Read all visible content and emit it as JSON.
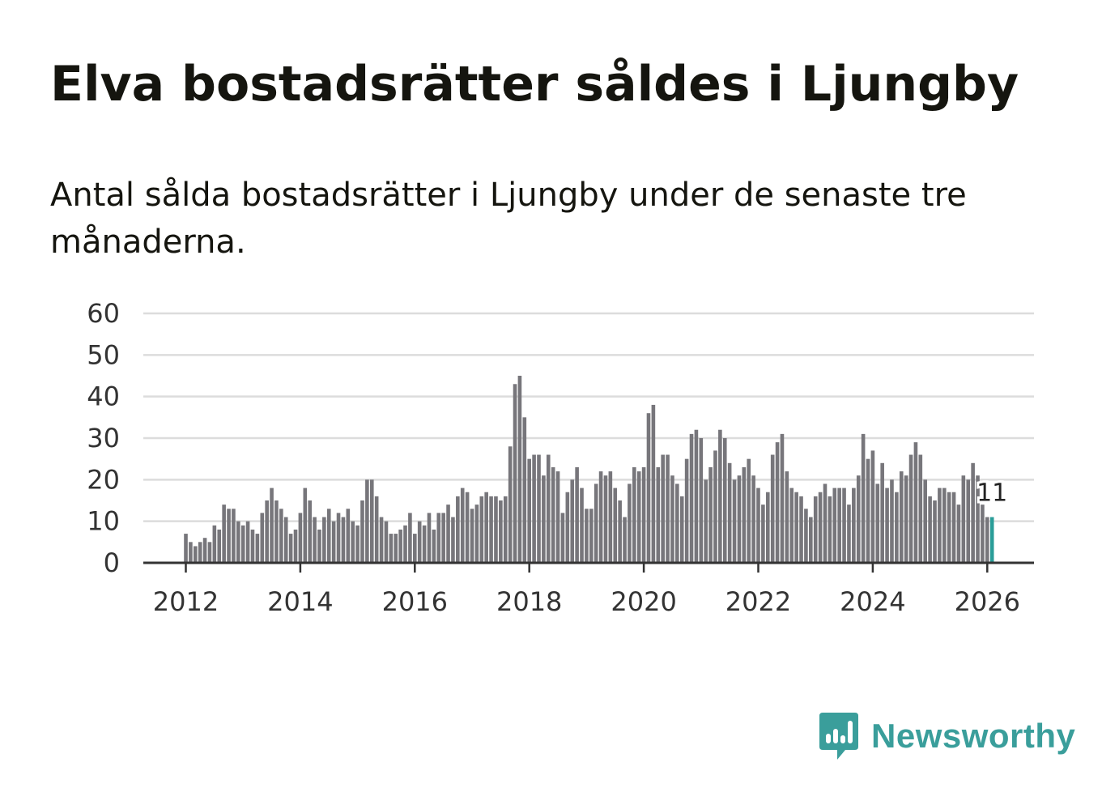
{
  "title": "Elva bostadsrätter såldes i Ljungby",
  "subtitle": "Antal sålda bostadsrätter i Ljungby under de senaste tre månaderna.",
  "brand": {
    "name": "Newsworthy",
    "color": "#3a9e9b"
  },
  "chart_data": {
    "type": "bar",
    "title": "Elva bostadsrätter såldes i Ljungby",
    "xlabel": "",
    "ylabel": "",
    "ylim": [
      0,
      60
    ],
    "grid": true,
    "y_ticks": [
      0,
      10,
      20,
      30,
      40,
      50,
      60
    ],
    "x_ticks": [
      "2012",
      "2014",
      "2016",
      "2018",
      "2020",
      "2022",
      "2024",
      "2026"
    ],
    "x_start": "2012-01",
    "bar_color": "#77767b",
    "highlight_color": "#2a9d98",
    "highlight_label": "11",
    "values": [
      7,
      5,
      4,
      5,
      6,
      5,
      9,
      8,
      14,
      13,
      13,
      10,
      9,
      10,
      8,
      7,
      12,
      15,
      18,
      15,
      13,
      11,
      7,
      8,
      12,
      18,
      15,
      11,
      8,
      11,
      13,
      10,
      12,
      11,
      13,
      10,
      9,
      15,
      20,
      20,
      16,
      11,
      10,
      7,
      7,
      8,
      9,
      12,
      7,
      10,
      9,
      12,
      8,
      12,
      12,
      14,
      11,
      16,
      18,
      17,
      13,
      14,
      16,
      17,
      16,
      16,
      15,
      16,
      28,
      43,
      45,
      35,
      25,
      26,
      26,
      21,
      26,
      23,
      22,
      12,
      17,
      20,
      23,
      18,
      13,
      13,
      19,
      22,
      21,
      22,
      18,
      15,
      11,
      19,
      23,
      22,
      23,
      36,
      38,
      23,
      26,
      26,
      21,
      19,
      16,
      25,
      31,
      32,
      30,
      20,
      23,
      27,
      32,
      30,
      24,
      20,
      21,
      23,
      25,
      21,
      18,
      14,
      17,
      26,
      29,
      31,
      22,
      18,
      17,
      16,
      13,
      11,
      16,
      17,
      19,
      16,
      18,
      18,
      18,
      14,
      18,
      21,
      31,
      25,
      27,
      19,
      24,
      18,
      20,
      17,
      22,
      21,
      26,
      29,
      26,
      20,
      16,
      15,
      18,
      18,
      17,
      17,
      14,
      21,
      20,
      24,
      21,
      14,
      11,
      11
    ]
  }
}
